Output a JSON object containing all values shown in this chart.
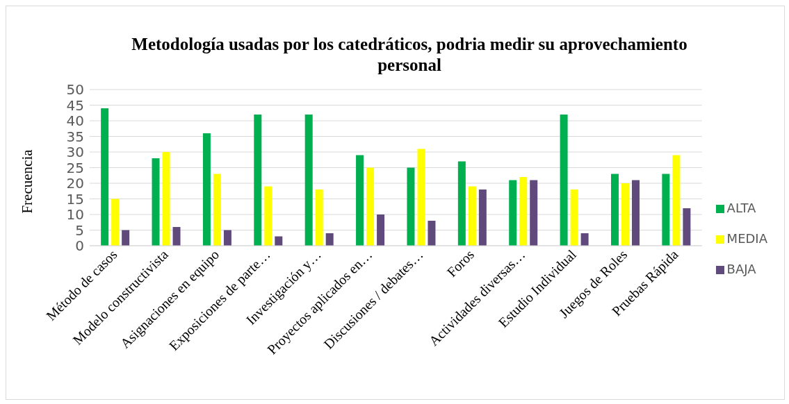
{
  "chart_data": {
    "type": "bar",
    "title": "Metodología usadas por los catedráticos, podria medir su aprovechamiento personal",
    "ylabel": "Frecuencia",
    "categories": [
      "Método de casos",
      "Modelo constructivista",
      "Asignaciones en equipo",
      "Exposiciones de parte…",
      "Investigación y…",
      "Proyectos aplicados en…",
      "Discusiones / debates…",
      "Foros",
      "Actividades diversas…",
      "Estudio Individual",
      "Juegos de Roles",
      "Pruebas Rápida"
    ],
    "series": [
      {
        "name": "ALTA",
        "color": "#00b050",
        "values": [
          44,
          28,
          36,
          42,
          42,
          29,
          25,
          27,
          21,
          42,
          23,
          23
        ]
      },
      {
        "name": "MEDIA",
        "color": "#ffff00",
        "values": [
          15,
          30,
          23,
          19,
          18,
          25,
          31,
          19,
          22,
          18,
          20,
          29
        ]
      },
      {
        "name": "BAJA",
        "color": "#604a7b",
        "values": [
          5,
          6,
          5,
          3,
          4,
          10,
          8,
          18,
          21,
          4,
          21,
          12
        ]
      }
    ],
    "ylim": [
      0,
      50
    ],
    "yticks": [
      0,
      5,
      10,
      15,
      20,
      25,
      30,
      35,
      40,
      45,
      50
    ],
    "grid": "y",
    "legend": "right"
  }
}
